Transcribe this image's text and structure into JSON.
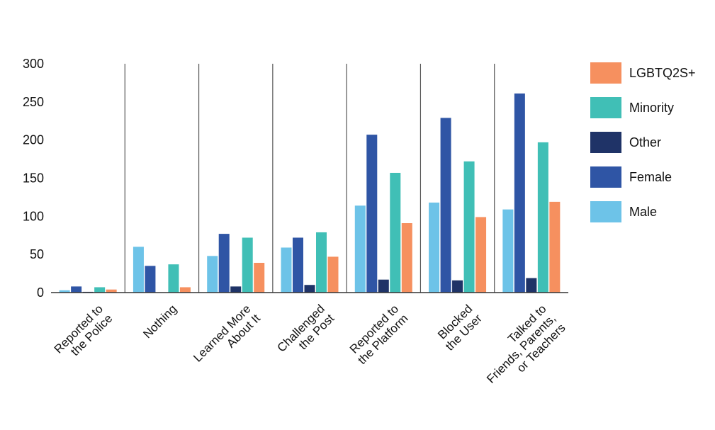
{
  "chart_data": {
    "type": "bar",
    "title": "",
    "xlabel": "",
    "ylabel": "",
    "ylim": [
      0,
      300
    ],
    "yticks": [
      0,
      50,
      100,
      150,
      200,
      250,
      300
    ],
    "legend_position": "right",
    "categories": [
      [
        "Reported to",
        "the Police"
      ],
      [
        "Nothing"
      ],
      [
        "Learned More",
        "About It"
      ],
      [
        "Challenged",
        "the Post"
      ],
      [
        "Reported to",
        "the Platform"
      ],
      [
        "Blocked",
        "the User"
      ],
      [
        "Talked to",
        "Friends, Parents,",
        "or Teachers"
      ]
    ],
    "series": [
      {
        "name": "Male",
        "color": "#6DC3E8",
        "values": [
          3,
          60,
          48,
          59,
          114,
          118,
          109
        ]
      },
      {
        "name": "Female",
        "color": "#2F55A5",
        "values": [
          8,
          35,
          77,
          72,
          207,
          229,
          261
        ]
      },
      {
        "name": "Other",
        "color": "#1F3367",
        "values": [
          1,
          0,
          8,
          10,
          17,
          16,
          19
        ]
      },
      {
        "name": "Minority",
        "color": "#40BFB6",
        "values": [
          7,
          37,
          72,
          79,
          157,
          172,
          197
        ]
      },
      {
        "name": "LGBTQ2S+",
        "color": "#F6905F",
        "values": [
          4,
          7,
          39,
          47,
          91,
          99,
          119
        ]
      }
    ],
    "legend_order": [
      "LGBTQ2S+",
      "Minority",
      "Other",
      "Female",
      "Male"
    ]
  }
}
